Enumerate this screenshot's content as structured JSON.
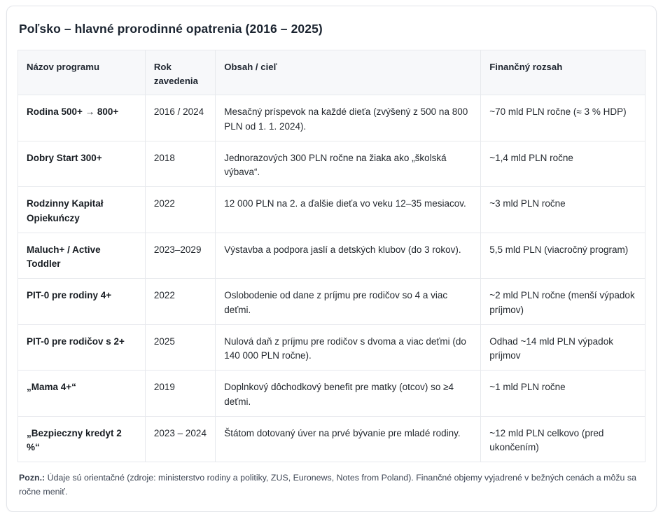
{
  "page": {
    "title": "Poľsko – hlavné prorodinné opatrenia (2016 – 2025)"
  },
  "table": {
    "columns": [
      "Názov programu",
      "Rok zavedenia",
      "Obsah / cieľ",
      "Finančný rozsah"
    ],
    "rows": [
      {
        "name": "Rodina 500+ → 800+",
        "year": "2016 / 2024",
        "content": "Mesačný príspevok na každé dieťa (zvýšený z 500 na 800 PLN od 1. 1. 2024).",
        "finance": "~70 mld PLN ročne (≈ 3 % HDP)"
      },
      {
        "name": "Dobry Start 300+",
        "year": "2018",
        "content": "Jednorazových 300 PLN ročne na žiaka ako „školská výbava“.",
        "finance": "~1,4 mld PLN ročne"
      },
      {
        "name": "Rodzinny Kapitał Opiekuńczy",
        "year": "2022",
        "content": "12 000 PLN na 2. a ďalšie dieťa vo veku 12–35 mesiacov.",
        "finance": "~3 mld PLN ročne"
      },
      {
        "name": "Maluch+ / Active Toddler",
        "year": "2023–2029",
        "content": "Výstavba a podpora jaslí a detských klubov (do 3 rokov).",
        "finance": "5,5 mld PLN (viacročný program)"
      },
      {
        "name": "PIT-0 pre rodiny 4+",
        "year": "2022",
        "content": "Oslobodenie od dane z príjmu pre rodičov so 4 a viac deťmi.",
        "finance": "~2 mld PLN ročne (menší výpadok príjmov)"
      },
      {
        "name": "PIT-0 pre rodičov s 2+",
        "year": "2025",
        "content": "Nulová daň z príjmu pre rodičov s dvoma a viac deťmi (do 140 000 PLN ročne).",
        "finance": "Odhad ~14 mld PLN výpadok príjmov"
      },
      {
        "name": "„Mama 4+“",
        "year": "2019",
        "content": "Doplnkový dôchodkový benefit pre matky (otcov) so ≥4 deťmi.",
        "finance": "~1 mld PLN ročne"
      },
      {
        "name": "„Bezpieczny kredyt 2 %“",
        "year": "2023 – 2024",
        "content": "Štátom dotovaný úver na prvé bývanie pre mladé rodiny.",
        "finance": "~12 mld PLN celkovo (pred ukončením)"
      }
    ]
  },
  "footnote": {
    "label": "Pozn.:",
    "text": "Údaje sú orientačné (zdroje: ministerstvo rodiny a politiky, ZUS, Euronews, Notes from Poland). Finančné objemy vyjadrené v bežných cenách a môžu sa ročne meniť."
  },
  "colors": {
    "card_border": "#e3e5ea",
    "table_border": "#e7e9ed",
    "header_background": "#f7f8fa",
    "title_text": "#1b2430",
    "body_text": "#24292f",
    "footnote_text": "#3e4654"
  }
}
